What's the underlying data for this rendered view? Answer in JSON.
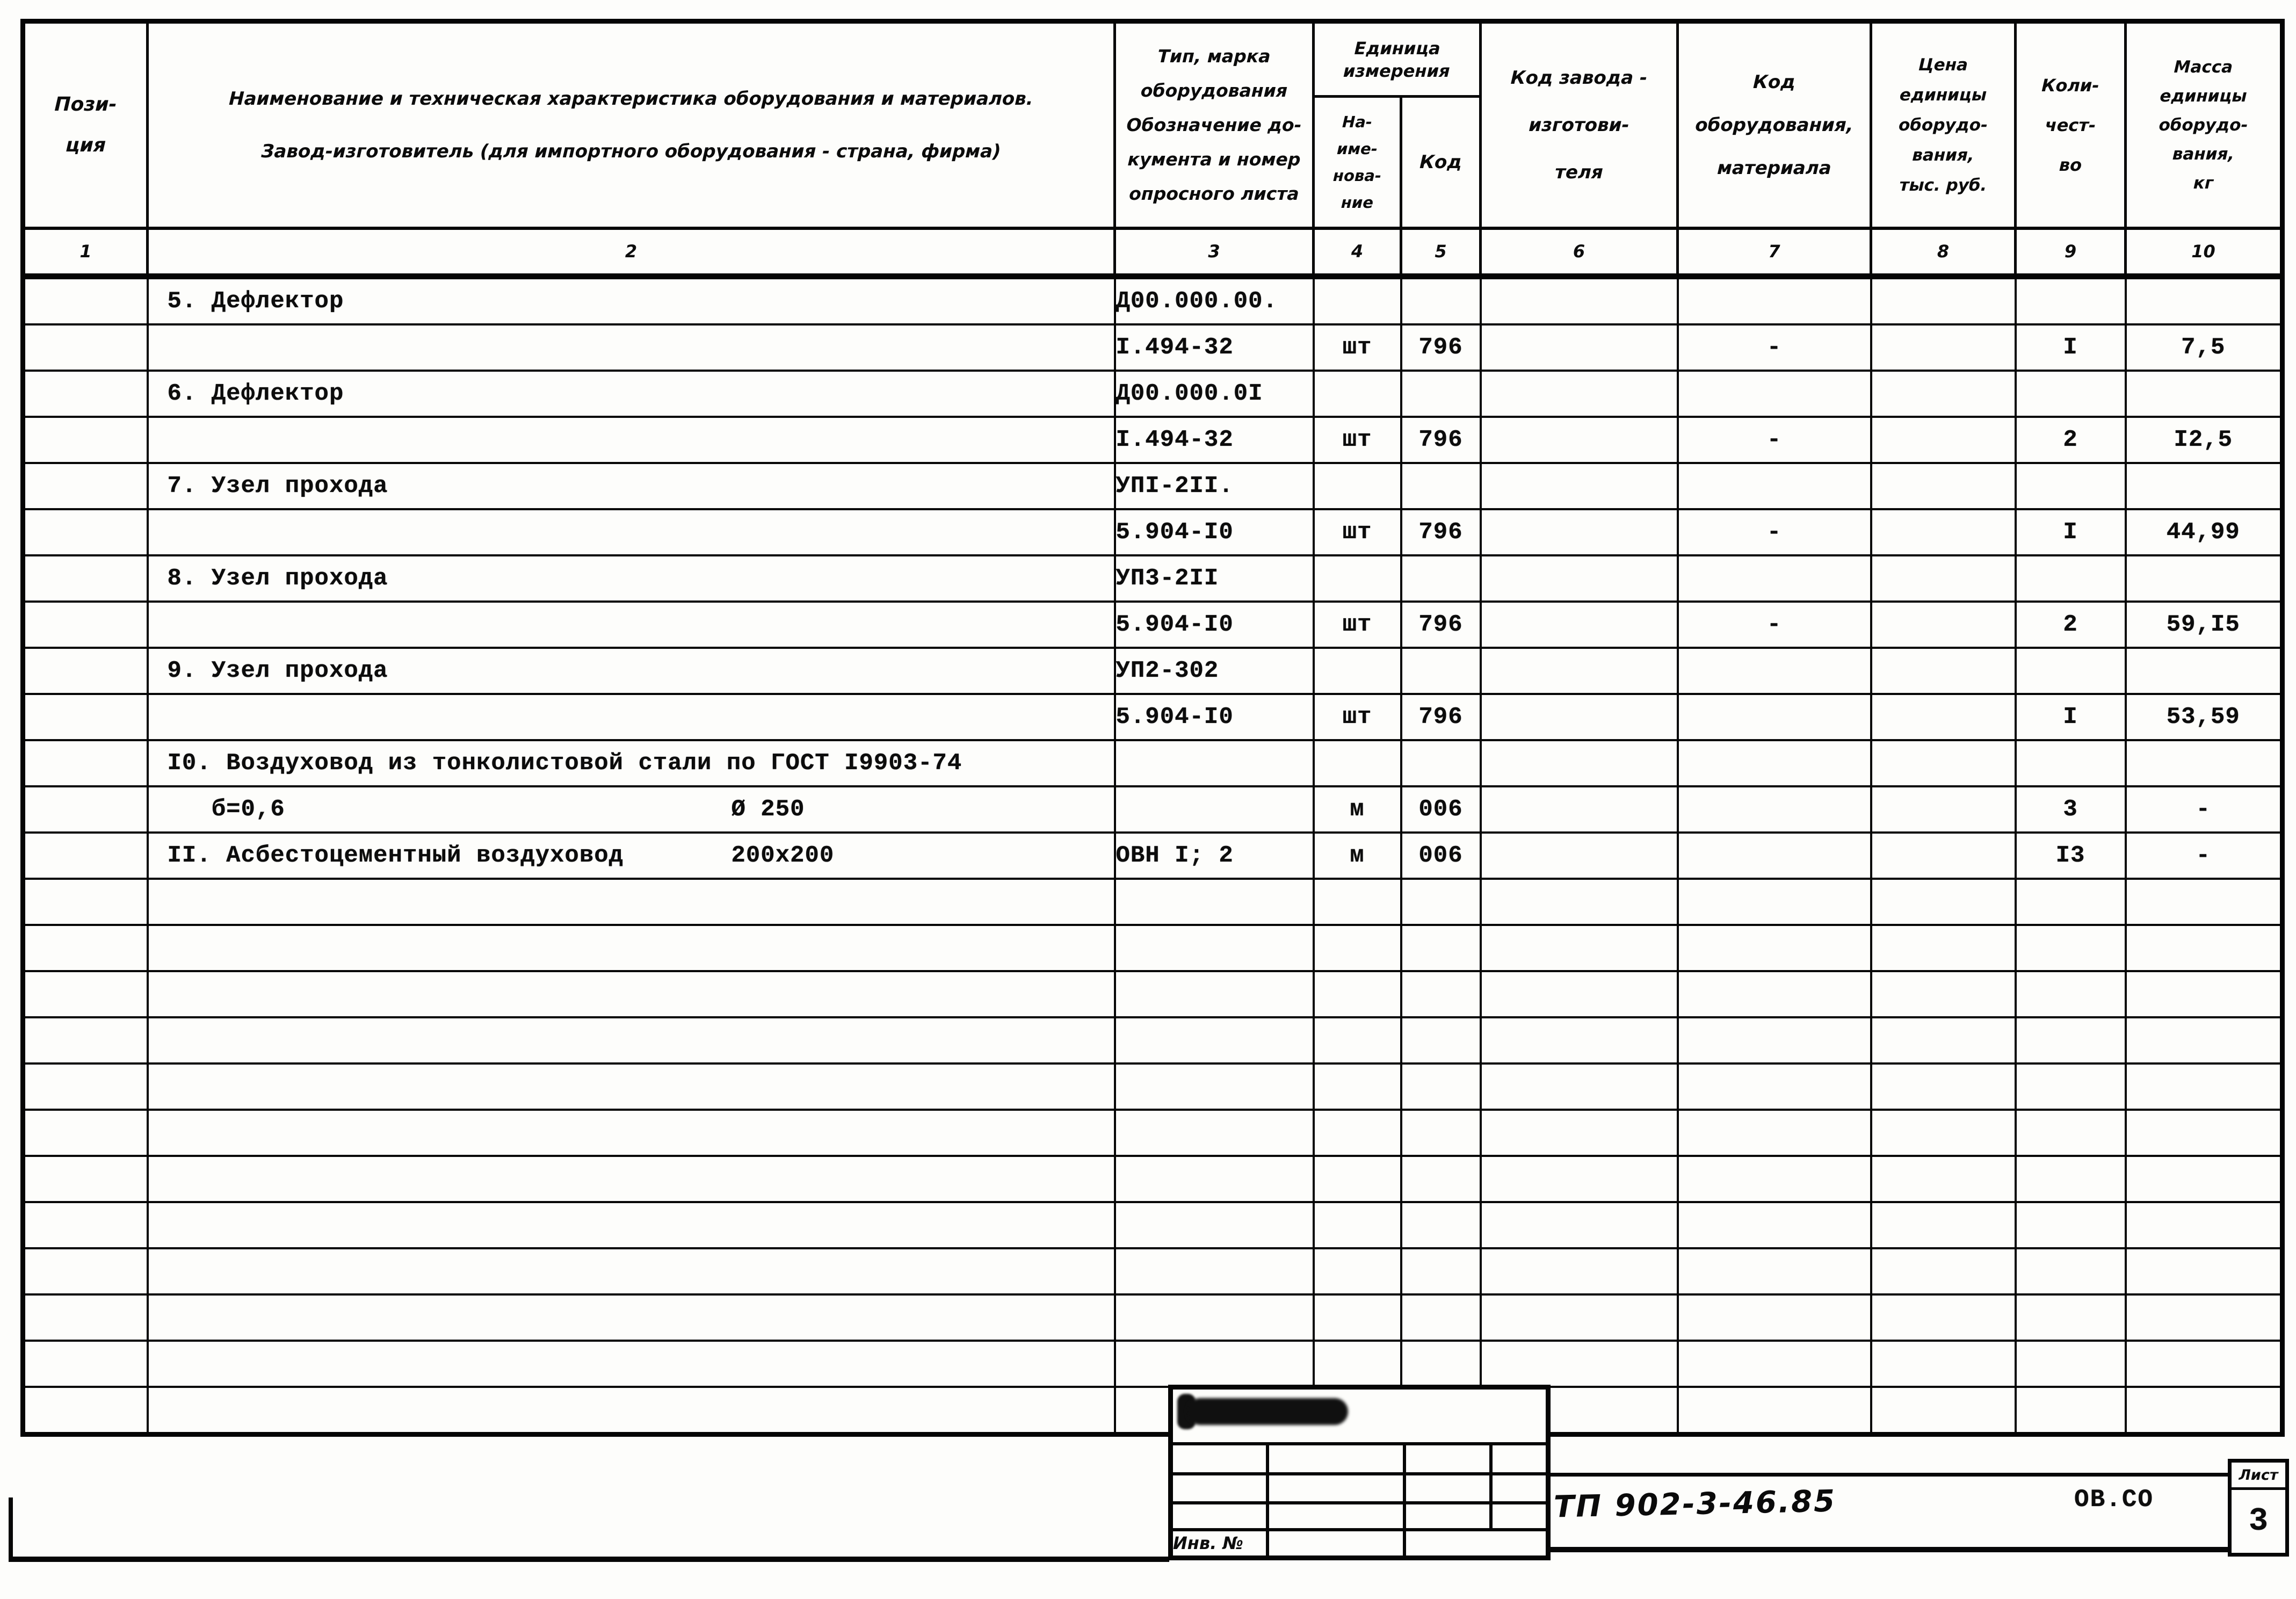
{
  "colors": {
    "ink": "#0c0c0c",
    "paper": "#fdfdfb"
  },
  "table": {
    "header": {
      "col1": [
        "Пози-",
        "ция"
      ],
      "col2_line1": "Наименование и техническая характеристика  оборудования и материалов.",
      "col2_line2": "Завод-изготовитель  (для импортного оборудования -  страна, фирма)",
      "col3": [
        "Тип,  марка",
        "оборудования",
        "Обозначение до-",
        "кумента и номер",
        "опросного листа"
      ],
      "unit_group": "Единица измерения",
      "col4": [
        "На-",
        "име-",
        "нова-",
        "ние"
      ],
      "col5": "Код",
      "col6": [
        "Код  завода -",
        "изготови-",
        "теля"
      ],
      "col7": [
        "Код",
        "оборудования,",
        "материала"
      ],
      "col8": [
        "Цена",
        "единицы",
        "оборудо-",
        "вания,",
        "тыс. руб."
      ],
      "col9": [
        "Коли-",
        "чест-",
        "во"
      ],
      "col10": [
        "Масса",
        "единицы",
        "оборудо-",
        "вания,",
        "кг"
      ],
      "numbers": [
        "1",
        "2",
        "3",
        "4",
        "5",
        "6",
        "7",
        "8",
        "9",
        "10"
      ]
    },
    "rows": [
      {
        "name": "5. Дефлектор",
        "c3": "Д00.000.00."
      },
      {
        "c3": "I.494-32",
        "c4": "шт",
        "c5": "796",
        "c7": "-",
        "c9": "I",
        "c10": "7,5"
      },
      {
        "name": "6. Дефлектор",
        "c3": "Д00.000.0I"
      },
      {
        "c3": "I.494-32",
        "c4": "шт",
        "c5": "796",
        "c7": "-",
        "c9": "2",
        "c10": "I2,5"
      },
      {
        "name": "7. Узел прохода",
        "c3": "УПI-2II."
      },
      {
        "c3": "5.904-I0",
        "c4": "шт",
        "c5": "796",
        "c7": "-",
        "c9": "I",
        "c10": "44,99"
      },
      {
        "name": "8. Узел прохода",
        "c3": "УП3-2II"
      },
      {
        "c3": "5.904-I0",
        "c4": "шт",
        "c5": "796",
        "c7": "-",
        "c9": "2",
        "c10": "59,I5"
      },
      {
        "name": "9. Узел прохода",
        "c3": "УП2-302"
      },
      {
        "c3": "5.904-I0",
        "c4": "шт",
        "c5": "796",
        "c9": "I",
        "c10": "53,59"
      },
      {
        "name": "I0. Воздуховод из тонколистовой стали по ГОСТ I9903-74"
      },
      {
        "name": "   б=0,6",
        "name_r": "Ø 250",
        "c4": "м",
        "c5": "006",
        "c9": "3",
        "c10": "-"
      },
      {
        "name": "II. Асбестоцементный воздуховод",
        "name_r": "200x200",
        "c3": "ОВН I; 2",
        "c4": "м",
        "c5": "006",
        "c9": "I3",
        "c10": "-"
      },
      {},
      {},
      {},
      {},
      {},
      {},
      {},
      {},
      {},
      {},
      {},
      {}
    ]
  },
  "stamp": {
    "inv_label": "Инв. №"
  },
  "footer": {
    "doc_number": "ТП 902-3-46.85",
    "sheet_code": "ОВ.СО",
    "sheet_label": "Лист",
    "sheet_number": "3"
  }
}
